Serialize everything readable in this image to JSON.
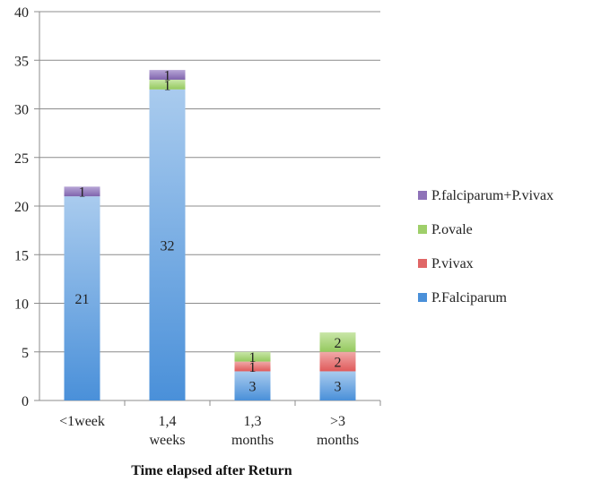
{
  "chart_data": {
    "type": "bar",
    "stacked": true,
    "categories": [
      [
        "<1week"
      ],
      [
        "1,4",
        "weeks"
      ],
      [
        "1,3",
        "months"
      ],
      [
        ">3",
        "months"
      ]
    ],
    "series": [
      {
        "name": "P.Falciparum",
        "color": "#4a90d9",
        "values": [
          21,
          32,
          3,
          3
        ]
      },
      {
        "name": "P.vivax",
        "color": "#e06666",
        "values": [
          0,
          0,
          1,
          2
        ]
      },
      {
        "name": "P.ovale",
        "color": "#9fcf6a",
        "values": [
          0,
          1,
          1,
          2
        ]
      },
      {
        "name": "P.falciparum+P.vivax",
        "color": "#8e72b8",
        "values": [
          1,
          1,
          0,
          0
        ]
      }
    ],
    "legend_order": [
      "P.falciparum+P.vivax",
      "P.ovale",
      "P.vivax",
      "P.Falciparum"
    ],
    "legend_position": "right",
    "xlabel": "Time elapsed after Return",
    "ylabel": "",
    "title": "",
    "ylim": [
      0,
      40
    ],
    "yticks": [
      0,
      5,
      10,
      15,
      20,
      25,
      30,
      35,
      40
    ],
    "grid": true
  }
}
